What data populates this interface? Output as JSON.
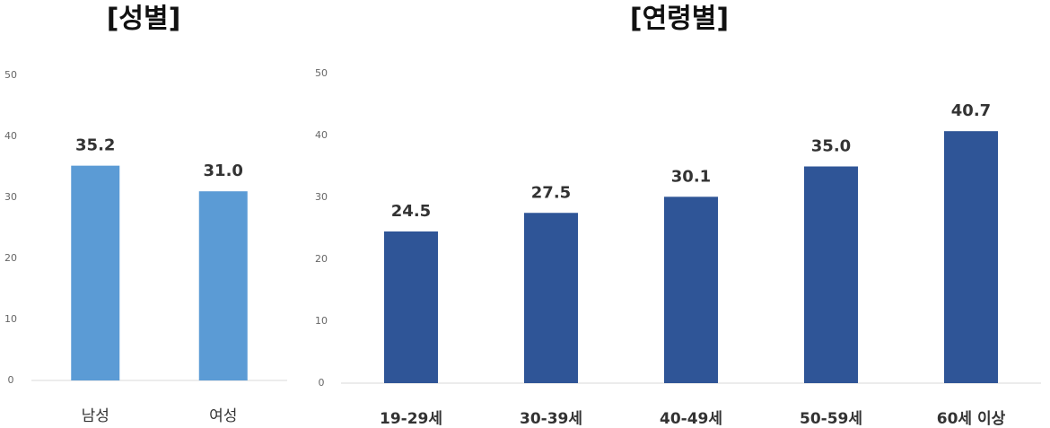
{
  "chart_data": [
    {
      "type": "bar",
      "title": "[성별]",
      "categories": [
        "남성",
        "여성"
      ],
      "values": [
        35.2,
        31.0
      ],
      "value_labels": [
        "35.2",
        "31.0"
      ],
      "color": "#5b9bd5",
      "ylim": [
        0,
        50
      ],
      "yticks": [
        0,
        10,
        20,
        30,
        40,
        50
      ],
      "grid": false
    },
    {
      "type": "bar",
      "title": "[연령별]",
      "categories": [
        "19-29세",
        "30-39세",
        "40-49세",
        "50-59세",
        "60세 이상"
      ],
      "values": [
        24.5,
        27.5,
        30.1,
        35.0,
        40.7
      ],
      "value_labels": [
        "24.5",
        "27.5",
        "30.1",
        "35.0",
        "40.7"
      ],
      "color": "#2f5597",
      "ylim": [
        0,
        50
      ],
      "yticks": [
        0,
        10,
        20,
        30,
        40,
        50
      ],
      "grid": false
    }
  ]
}
